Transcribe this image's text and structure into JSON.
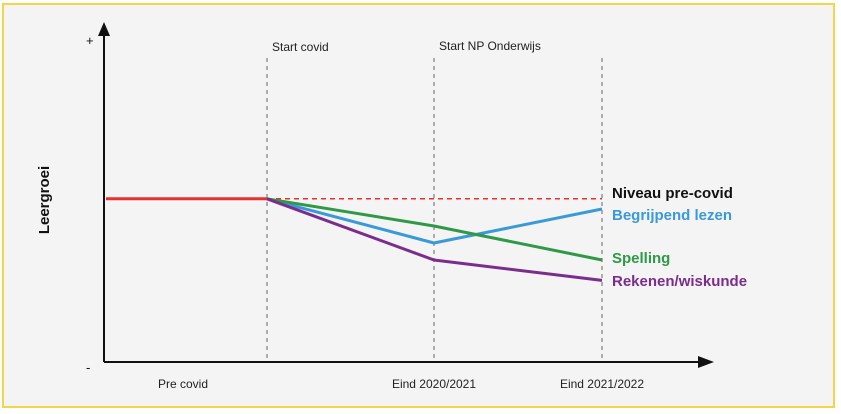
{
  "chart_data": {
    "type": "line",
    "ylabel": "Leergroei",
    "y_tick_labels": {
      "top": "+",
      "bottom": "-"
    },
    "x_tick_labels": [
      "Pre covid",
      "Eind 2020/2021",
      "Eind 2021/2022"
    ],
    "markers": [
      "Start covid",
      "Start NP Onderwijs"
    ],
    "x_points": [
      "Pre covid start",
      "Start covid",
      "Eind 2020/2021",
      "Eind 2021/2022"
    ],
    "series": [
      {
        "name": "Niveau pre-covid",
        "color": "#e8312f",
        "label_color": "#111111",
        "style": "dashed-after-covid",
        "values": [
          0.48,
          0.48,
          0.48,
          0.48
        ]
      },
      {
        "name": "Begrijpend lezen",
        "color": "#3a9ad9",
        "label_color": "#3a9ad9",
        "style": "solid",
        "values": [
          null,
          0.48,
          0.35,
          0.45
        ]
      },
      {
        "name": "Spelling",
        "color": "#2e9a47",
        "label_color": "#2e9a47",
        "style": "solid",
        "values": [
          null,
          0.48,
          0.4,
          0.3
        ]
      },
      {
        "name": "Rekenen/wiskunde",
        "color": "#7b2d8e",
        "label_color": "#7b2d8e",
        "style": "solid",
        "values": [
          null,
          0.48,
          0.3,
          0.24
        ]
      }
    ],
    "ylim": [
      0,
      1
    ],
    "grid": false,
    "legend": "right"
  }
}
